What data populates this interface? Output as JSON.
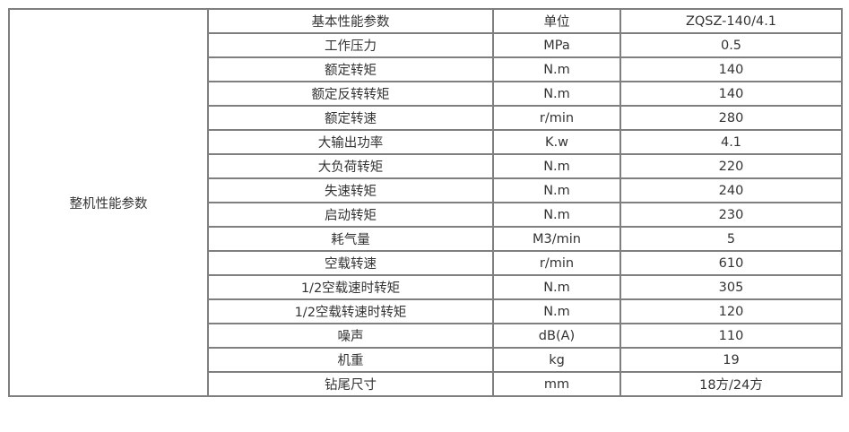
{
  "table": {
    "group_label": "整机性能参数",
    "header": [
      "基本性能参数",
      "单位",
      "ZQSZ-140/4.1"
    ],
    "rows": [
      [
        "工作压力",
        "MPa",
        "0.5"
      ],
      [
        "额定转矩",
        "N.m",
        "140"
      ],
      [
        "额定反转转矩",
        "N.m",
        "140"
      ],
      [
        "额定转速",
        "r/min",
        "280"
      ],
      [
        "大输出功率",
        "K.w",
        "4.1"
      ],
      [
        "大负荷转矩",
        "N.m",
        "220"
      ],
      [
        "失速转矩",
        "N.m",
        "240"
      ],
      [
        "启动转矩",
        "N.m",
        "230"
      ],
      [
        "耗气量",
        "M3/min",
        "5"
      ],
      [
        "空载转速",
        "r/min",
        "610"
      ],
      [
        "1/2空载速时转矩",
        "N.m",
        "305"
      ],
      [
        "1/2空载转速时转矩",
        "N.m",
        "120"
      ],
      [
        "噪声",
        "dB(A)",
        "110"
      ],
      [
        "机重",
        "kg",
        "19"
      ],
      [
        "钻尾尺寸",
        "mm",
        "18方/24方"
      ]
    ]
  }
}
